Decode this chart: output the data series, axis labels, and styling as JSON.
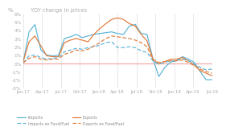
{
  "title": "YOY change in prices",
  "ylabel": "%",
  "ylim": [
    -3,
    6
  ],
  "yticks": [
    -3,
    -2,
    -1,
    0,
    1,
    2,
    3,
    4,
    5,
    6
  ],
  "ytick_labels": [
    "-3%",
    "-2%",
    "-1%",
    "0%",
    "1%",
    "2%",
    "3%",
    "4%",
    "5%",
    "6%"
  ],
  "xtick_labels": [
    "Jan-17",
    "Apr-17",
    "Jul-17",
    "Oct-17",
    "Jan-18",
    "Apr-18",
    "Jul-18",
    "Oct-18",
    "Jan-19",
    "Apr-19",
    "Jul-19"
  ],
  "bg_color": "#ffffff",
  "plot_bg_color": "#ffffff",
  "zero_line_color": "#f0a0a0",
  "grid_color": "#e8e8e8",
  "imports_color": "#5ab4d6",
  "exports_color": "#e07a38",
  "imports_ex_color": "#5ab4d6",
  "exports_ex_color": "#e07a38",
  "imports": [
    0.1,
    3.8,
    4.7,
    1.6,
    1.0,
    0.9,
    1.0,
    3.0,
    3.2,
    3.5,
    3.1,
    3.3,
    3.5,
    3.6,
    3.7,
    3.8,
    3.6,
    3.5,
    4.5,
    4.7,
    3.6,
    3.5,
    0.5,
    -1.6,
    -0.5,
    0.15,
    0.3,
    0.8,
    0.5,
    0.1,
    -1.0,
    -2.0,
    -2.0
  ],
  "exports": [
    0.2,
    2.6,
    3.3,
    2.1,
    0.9,
    0.8,
    0.8,
    2.5,
    2.8,
    3.0,
    2.8,
    2.6,
    3.5,
    4.2,
    4.8,
    5.3,
    5.5,
    5.3,
    4.8,
    4.5,
    3.5,
    2.7,
    0.5,
    -0.1,
    0.2,
    0.5,
    0.5,
    0.7,
    0.3,
    -0.2,
    -0.9,
    -1.2,
    -1.5
  ],
  "imports_ex": [
    0.05,
    0.9,
    1.0,
    0.7,
    0.5,
    0.6,
    0.7,
    1.4,
    1.6,
    1.8,
    1.7,
    1.9,
    2.0,
    2.2,
    2.5,
    2.6,
    1.9,
    1.9,
    2.0,
    1.9,
    1.5,
    1.3,
    0.3,
    -0.1,
    0.15,
    0.25,
    0.35,
    0.5,
    0.3,
    -0.1,
    -0.5,
    -0.8,
    -0.7
  ],
  "exports_ex": [
    0.05,
    0.6,
    0.8,
    0.5,
    0.4,
    0.5,
    0.5,
    1.1,
    1.3,
    1.6,
    1.5,
    1.7,
    2.1,
    2.5,
    3.0,
    3.3,
    3.2,
    3.1,
    3.0,
    2.8,
    2.5,
    2.0,
    0.4,
    0.1,
    0.2,
    0.3,
    0.3,
    0.4,
    0.1,
    -0.3,
    -0.7,
    -1.0,
    -1.2
  ],
  "legend_items": [
    {
      "label": "Imports",
      "color": "#5ab4d6",
      "ls": "solid"
    },
    {
      "label": "Imports ex Food/Fuel",
      "color": "#5ab4d6",
      "ls": "dashed"
    },
    {
      "label": "Exports",
      "color": "#e07a38",
      "ls": "solid"
    },
    {
      "label": "Exports ex Food/Fuel",
      "color": "#e07a38",
      "ls": "dashed"
    }
  ]
}
